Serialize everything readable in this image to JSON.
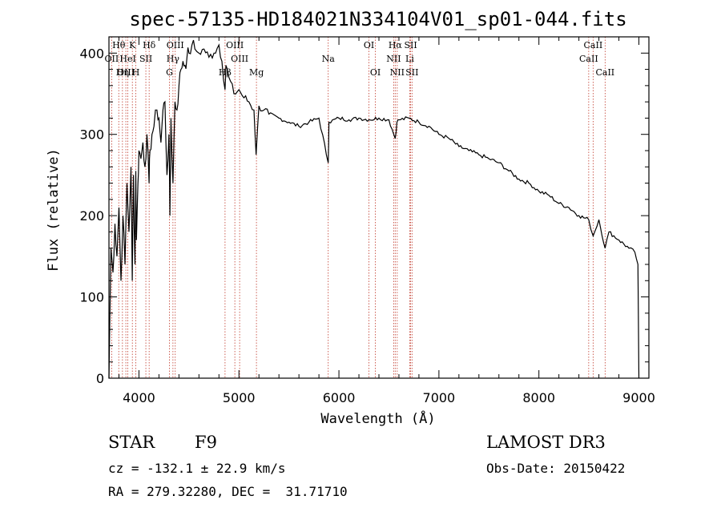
{
  "chart_data": {
    "type": "line",
    "title": "spec-57135-HD184021N334104V01_sp01-044.fits",
    "xlabel": "Wavelength (Å)",
    "ylabel": "Flux (relative)",
    "xlim": [
      3700,
      9100
    ],
    "ylim": [
      0,
      420
    ],
    "xticks": [
      4000,
      5000,
      6000,
      7000,
      8000,
      9000
    ],
    "yticks": [
      0,
      100,
      200,
      300,
      400
    ],
    "grid": false,
    "spectrum": {
      "x": [
        3700,
        3720,
        3740,
        3760,
        3780,
        3800,
        3820,
        3840,
        3860,
        3880,
        3900,
        3920,
        3933,
        3945,
        3960,
        3968,
        3975,
        3990,
        4000,
        4020,
        4040,
        4060,
        4080,
        4101,
        4110,
        4130,
        4150,
        4180,
        4200,
        4220,
        4240,
        4260,
        4280,
        4300,
        4310,
        4320,
        4340,
        4360,
        4380,
        4400,
        4420,
        4440,
        4460,
        4480,
        4500,
        4530,
        4560,
        4600,
        4650,
        4700,
        4750,
        4800,
        4830,
        4861,
        4870,
        4900,
        4950,
        5000,
        5050,
        5100,
        5150,
        5172,
        5200,
        5250,
        5300,
        5400,
        5500,
        5600,
        5700,
        5800,
        5893,
        5900,
        6000,
        6100,
        6200,
        6300,
        6400,
        6500,
        6563,
        6580,
        6600,
        6700,
        6800,
        6900,
        7000,
        7100,
        7200,
        7300,
        7400,
        7500,
        7600,
        7700,
        7800,
        7900,
        8000,
        8100,
        8200,
        8300,
        8400,
        8498,
        8542,
        8600,
        8662,
        8700,
        8800,
        8900,
        8960,
        8990,
        9000
      ],
      "y": [
        0,
        160,
        130,
        190,
        150,
        210,
        120,
        200,
        140,
        240,
        180,
        260,
        120,
        250,
        140,
        255,
        170,
        240,
        280,
        270,
        290,
        260,
        300,
        240,
        280,
        300,
        310,
        330,
        320,
        290,
        330,
        340,
        250,
        300,
        200,
        320,
        240,
        340,
        330,
        360,
        380,
        390,
        385,
        395,
        400,
        410,
        405,
        400,
        405,
        395,
        400,
        410,
        390,
        355,
        385,
        370,
        350,
        355,
        345,
        340,
        330,
        275,
        335,
        330,
        325,
        320,
        315,
        310,
        315,
        320,
        265,
        315,
        320,
        318,
        320,
        318,
        320,
        318,
        295,
        315,
        318,
        320,
        315,
        310,
        300,
        295,
        285,
        280,
        275,
        270,
        265,
        255,
        245,
        240,
        230,
        225,
        215,
        210,
        200,
        195,
        175,
        195,
        160,
        180,
        170,
        160,
        155,
        140,
        0
      ]
    },
    "spectral_lines": [
      {
        "label": "Hθ",
        "wavelength": 3798,
        "row": 1
      },
      {
        "label": "OII",
        "wavelength": 3727,
        "row": 2
      },
      {
        "label": "OIII",
        "wavelength": 3869,
        "row": 3
      },
      {
        "label": "K",
        "wavelength": 3934,
        "row": 1
      },
      {
        "label": "HeI",
        "wavelength": 3889,
        "row": 2
      },
      {
        "label": "Hη",
        "wavelength": 3835,
        "row": 3
      },
      {
        "label": "H",
        "wavelength": 3969,
        "row": 3
      },
      {
        "label": "SII",
        "wavelength": 4069,
        "row": 2
      },
      {
        "label": "Hδ",
        "wavelength": 4102,
        "row": 1
      },
      {
        "label": "OIII",
        "wavelength": 4363,
        "row": 1
      },
      {
        "label": "Hγ",
        "wavelength": 4340,
        "row": 2
      },
      {
        "label": "G",
        "wavelength": 4305,
        "row": 3
      },
      {
        "label": "OIII",
        "wavelength": 4959,
        "row": 1
      },
      {
        "label": "OIII",
        "wavelength": 5007,
        "row": 2
      },
      {
        "label": "Hβ",
        "wavelength": 4861,
        "row": 3
      },
      {
        "label": "Mg",
        "wavelength": 5175,
        "row": 3
      },
      {
        "label": "Na",
        "wavelength": 5893,
        "row": 2
      },
      {
        "label": "OI",
        "wavelength": 6300,
        "row": 1
      },
      {
        "label": "OI",
        "wavelength": 6364,
        "row": 3
      },
      {
        "label": "Hα",
        "wavelength": 6563,
        "row": 1
      },
      {
        "label": "NII",
        "wavelength": 6548,
        "row": 2
      },
      {
        "label": "NII",
        "wavelength": 6583,
        "row": 3
      },
      {
        "label": "SII",
        "wavelength": 6717,
        "row": 1
      },
      {
        "label": "Li",
        "wavelength": 6708,
        "row": 2
      },
      {
        "label": "SII",
        "wavelength": 6731,
        "row": 3
      },
      {
        "label": "CaII",
        "wavelength": 8542,
        "row": 1
      },
      {
        "label": "CaII",
        "wavelength": 8498,
        "row": 2
      },
      {
        "label": "CaII",
        "wavelength": 8662,
        "row": 3
      }
    ]
  },
  "info": {
    "star_label": "STAR",
    "spectral_type": "F9",
    "survey": "LAMOST DR3",
    "cz_text": "cz = -132.1 ± 22.9 km/s",
    "obs_date_text": "Obs-Date: 20150422",
    "coords_text": "RA = 279.32280, DEC =  31.71710"
  },
  "colors": {
    "spectrum": "#000000",
    "line_markers": "#c0392b",
    "axes": "#000000"
  }
}
